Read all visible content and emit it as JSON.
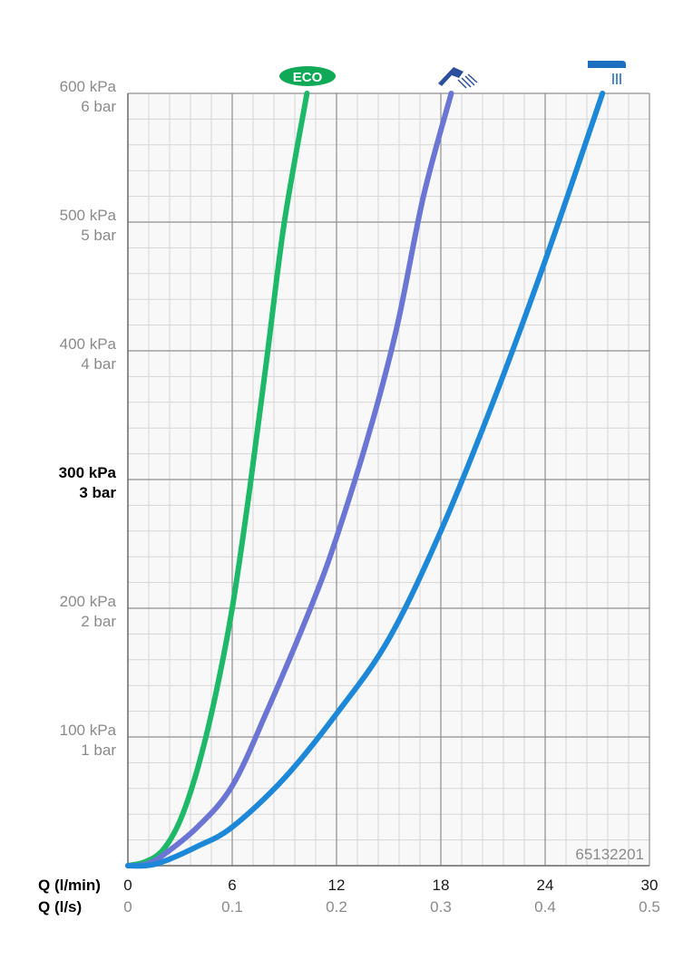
{
  "chart_data": {
    "type": "line",
    "x_axis": {
      "label_primary": "Q (l/min)",
      "label_secondary": "Q (l/s)",
      "ticks_primary": [
        "0",
        "6",
        "12",
        "18",
        "24",
        "30"
      ],
      "ticks_secondary": [
        "0",
        "0.1",
        "0.2",
        "0.3",
        "0.4",
        "0.5"
      ],
      "range": [
        0,
        30
      ]
    },
    "y_axis": {
      "unit": "kPa",
      "range": [
        0,
        600
      ],
      "ticks": [
        {
          "value": 100,
          "kpa": "100 kPa",
          "bar": "1 bar",
          "bold": false
        },
        {
          "value": 200,
          "kpa": "200 kPa",
          "bar": "2 bar",
          "bold": false
        },
        {
          "value": 300,
          "kpa": "300 kPa",
          "bar": "3 bar",
          "bold": true
        },
        {
          "value": 400,
          "kpa": "400 kPa",
          "bar": "4 bar",
          "bold": false
        },
        {
          "value": 500,
          "kpa": "500 kPa",
          "bar": "5 bar",
          "bold": false
        },
        {
          "value": 600,
          "kpa": "600 kPa",
          "bar": "6 bar",
          "bold": false
        }
      ]
    },
    "grid": true,
    "code_label": "65132201",
    "series": [
      {
        "icon": "eco-badge-icon",
        "badge_text": "ECO",
        "color": "#1db868",
        "points": [
          [
            0,
            0
          ],
          [
            1,
            3
          ],
          [
            2,
            12
          ],
          [
            3,
            35
          ],
          [
            4,
            75
          ],
          [
            5,
            130
          ],
          [
            6,
            200
          ],
          [
            7,
            292
          ],
          [
            8,
            395
          ],
          [
            9,
            500
          ],
          [
            10.3,
            600
          ]
        ]
      },
      {
        "icon": "hand-shower-icon",
        "color": "#6b75d4",
        "points": [
          [
            0,
            0
          ],
          [
            1,
            1
          ],
          [
            2,
            8
          ],
          [
            4,
            30
          ],
          [
            6,
            62
          ],
          [
            8,
            120
          ],
          [
            10.5,
            200
          ],
          [
            12,
            255
          ],
          [
            14,
            342
          ],
          [
            15.5,
            420
          ],
          [
            17,
            520
          ],
          [
            18.6,
            600
          ]
        ]
      },
      {
        "icon": "overhead-shower-icon",
        "color": "#1e88d8",
        "points": [
          [
            0,
            0
          ],
          [
            1,
            0
          ],
          [
            2,
            3
          ],
          [
            4,
            15
          ],
          [
            6,
            30
          ],
          [
            9,
            68
          ],
          [
            12,
            118
          ],
          [
            15,
            176
          ],
          [
            18,
            260
          ],
          [
            21,
            360
          ],
          [
            24,
            470
          ],
          [
            27.3,
            600
          ]
        ]
      }
    ],
    "colors": {
      "grid_major": "#8e8e8e",
      "grid_minor": "#d6d6d6",
      "background": "#f8f8f8"
    }
  }
}
